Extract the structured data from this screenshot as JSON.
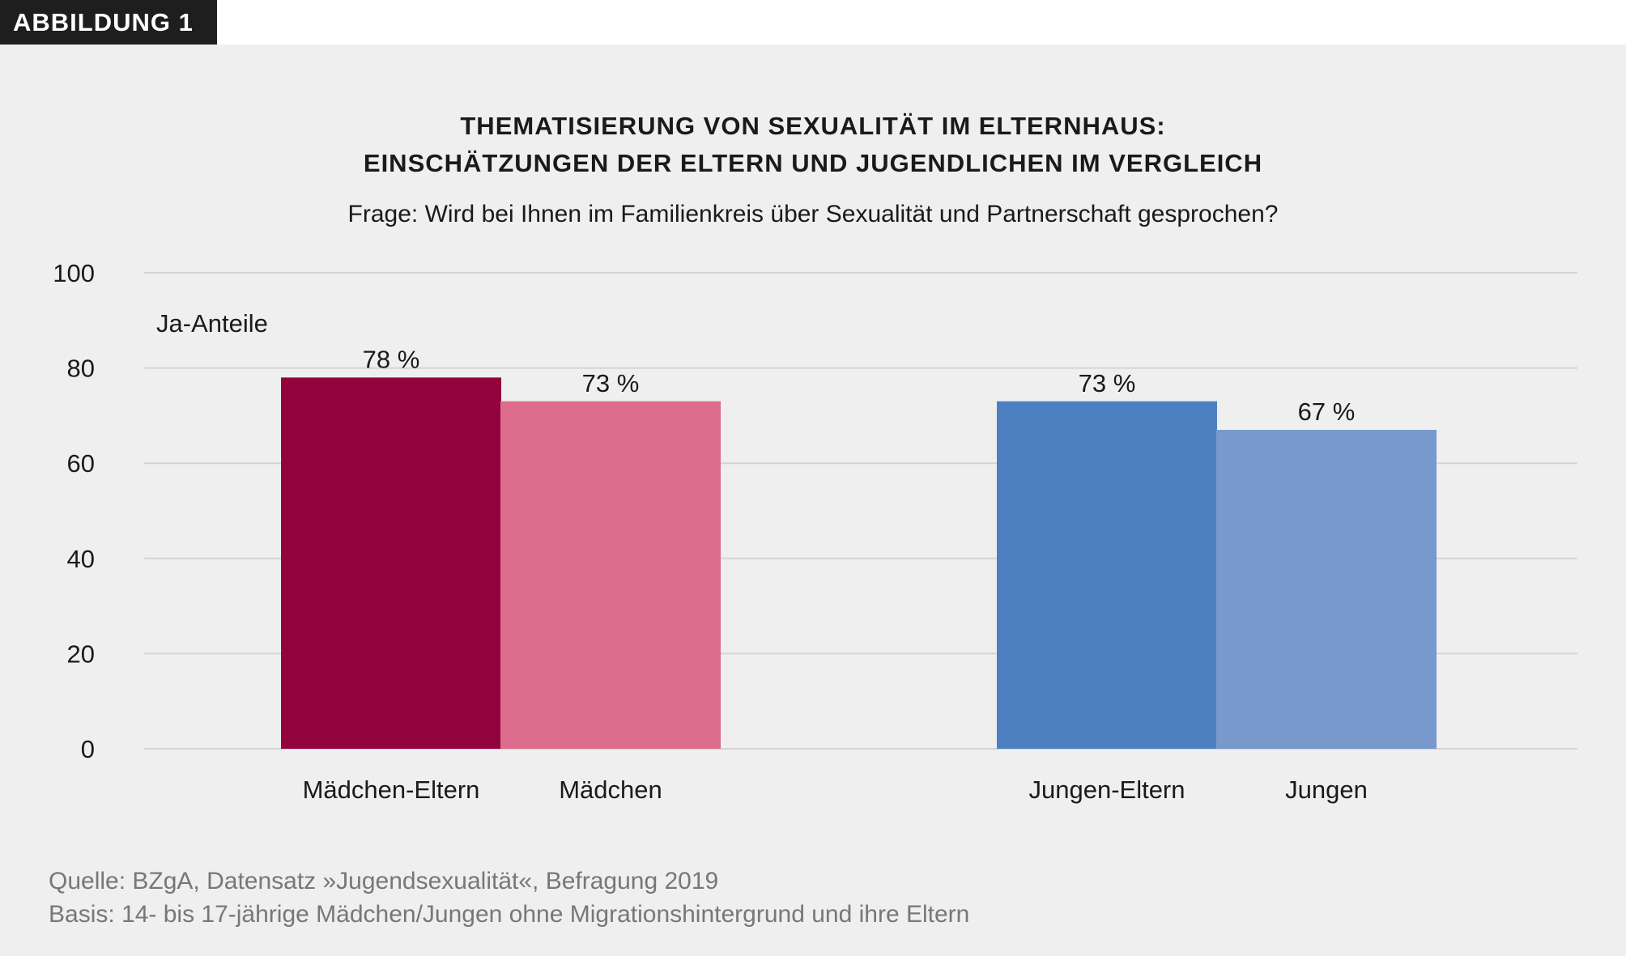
{
  "badge": "ABBILDUNG 1",
  "chart_data": {
    "type": "bar",
    "title": "THEMATISIERUNG VON SEXUALITÄT IM ELTERNHAUS:",
    "title2": "EINSCHÄTZUNGEN DER ELTERN UND JUGENDLICHEN IM VERGLEICH",
    "subtitle": "Frage: Wird bei Ihnen im Familienkreis über Sexualität und Partnerschaft gesprochen?",
    "ylabel": "Ja-Anteile",
    "ylim": [
      0,
      100
    ],
    "yticks": [
      0,
      20,
      40,
      60,
      80,
      100
    ],
    "grid": true,
    "categories": [
      "Mädchen-Eltern",
      "Mädchen",
      "Jungen-Eltern",
      "Jungen"
    ],
    "values": [
      78,
      73,
      73,
      67
    ],
    "data_labels": [
      "78 %",
      "73 %",
      "73 %",
      "67 %"
    ],
    "colors": [
      "#93043f",
      "#dc6d8c",
      "#4d80c0",
      "#7799cc"
    ]
  },
  "source": {
    "line1": "Quelle: BZgA, Datensatz »Jugendsexualität«, Befragung 2019",
    "line2": "Basis: 14- bis 17-jährige Mädchen/Jungen ohne Migrationshintergrund und ihre Eltern"
  }
}
